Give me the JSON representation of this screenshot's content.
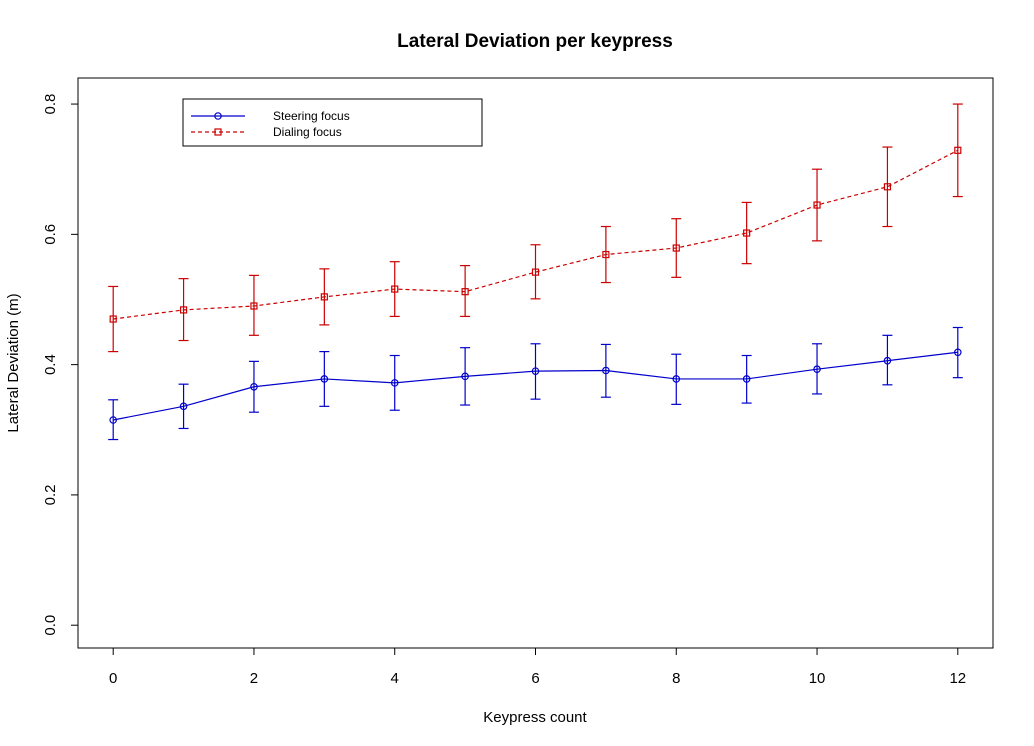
{
  "chart_data": {
    "type": "line",
    "title": "Lateral Deviation per keypress",
    "xlabel": "Keypress count",
    "ylabel": "Lateral Deviation (m)",
    "xlim": [
      -0.5,
      12.5
    ],
    "ylim": [
      -0.035,
      0.84
    ],
    "x_ticks": [
      "0",
      "2",
      "4",
      "6",
      "8",
      "10",
      "12"
    ],
    "y_ticks": [
      "0.0",
      "0.2",
      "0.4",
      "0.6",
      "0.8"
    ],
    "x": [
      0,
      1,
      2,
      3,
      4,
      5,
      6,
      7,
      8,
      9,
      10,
      11,
      12
    ],
    "grid": false,
    "legend_position": "top-left",
    "series": [
      {
        "name": "Steering focus",
        "color": "#0000cc",
        "line_style": "solid",
        "marker": "circle",
        "values": [
          0.315,
          0.336,
          0.366,
          0.378,
          0.372,
          0.382,
          0.39,
          0.391,
          0.378,
          0.378,
          0.393,
          0.406,
          0.419
        ],
        "lower": [
          0.285,
          0.302,
          0.327,
          0.336,
          0.33,
          0.338,
          0.347,
          0.35,
          0.339,
          0.341,
          0.355,
          0.369,
          0.38
        ],
        "upper": [
          0.346,
          0.37,
          0.405,
          0.42,
          0.414,
          0.426,
          0.432,
          0.431,
          0.416,
          0.414,
          0.432,
          0.445,
          0.457
        ]
      },
      {
        "name": "Dialing focus",
        "color": "#cc0000",
        "line_style": "dashed",
        "marker": "square",
        "values": [
          0.47,
          0.484,
          0.49,
          0.504,
          0.516,
          0.512,
          0.542,
          0.569,
          0.579,
          0.602,
          0.645,
          0.673,
          0.729
        ],
        "lower": [
          0.42,
          0.437,
          0.445,
          0.461,
          0.474,
          0.474,
          0.501,
          0.526,
          0.534,
          0.555,
          0.59,
          0.612,
          0.658
        ],
        "upper": [
          0.52,
          0.532,
          0.537,
          0.547,
          0.558,
          0.552,
          0.584,
          0.612,
          0.624,
          0.649,
          0.7,
          0.734,
          0.8
        ]
      }
    ]
  }
}
